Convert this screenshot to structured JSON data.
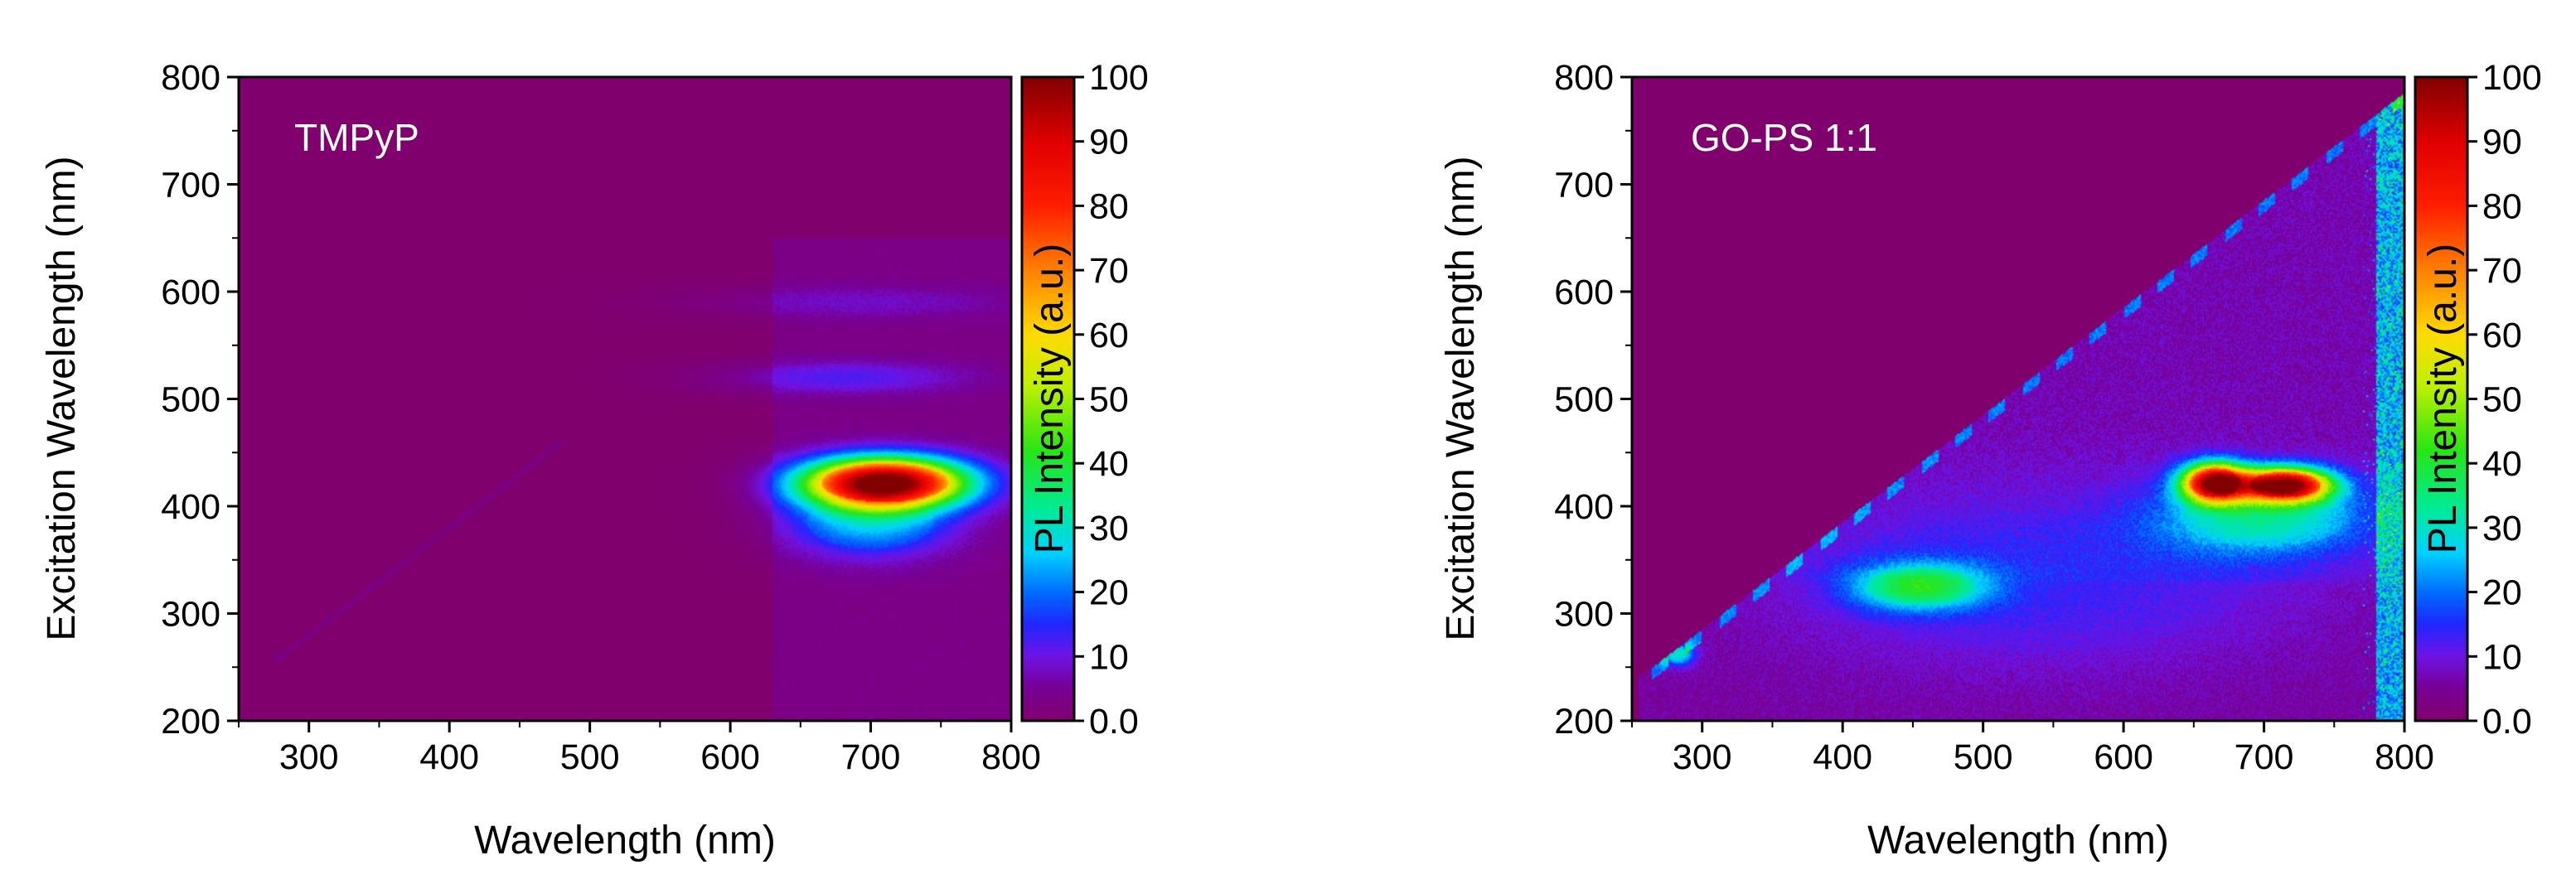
{
  "chart_data": [
    {
      "type": "heatmap",
      "panel_label": "TMPyP",
      "xlabel": "Wavelength (nm)",
      "ylabel": "Excitation Wavelength (nm)",
      "xlim": [
        250,
        800
      ],
      "ylim": [
        200,
        800
      ],
      "xticks": [
        "300",
        "400",
        "500",
        "600",
        "700",
        "800"
      ],
      "xtick_values": [
        300,
        400,
        500,
        600,
        700,
        800
      ],
      "yticks": [
        "200",
        "300",
        "400",
        "500",
        "600",
        "700",
        "800"
      ],
      "ytick_values": [
        200,
        300,
        400,
        500,
        600,
        700,
        800
      ],
      "colorbar": {
        "label": "PL Intensity (a.u.)",
        "range": [
          0,
          100
        ],
        "ticks": [
          "0.0",
          "10",
          "20",
          "30",
          "40",
          "50",
          "60",
          "70",
          "80",
          "90",
          "100"
        ],
        "tick_values": [
          0,
          10,
          20,
          30,
          40,
          50,
          60,
          70,
          80,
          90,
          100
        ]
      },
      "features": [
        {
          "kind": "blob",
          "em": 710,
          "ex": 422,
          "sigma_em": 45,
          "sigma_ex": 18,
          "intensity": 100
        },
        {
          "kind": "blob",
          "em": 700,
          "ex": 385,
          "sigma_em": 45,
          "sigma_ex": 25,
          "intensity": 22
        },
        {
          "kind": "blob",
          "em": 680,
          "ex": 520,
          "sigma_em": 70,
          "sigma_ex": 12,
          "intensity": 9
        },
        {
          "kind": "blob",
          "em": 690,
          "ex": 590,
          "sigma_em": 90,
          "sigma_ex": 12,
          "intensity": 5
        },
        {
          "kind": "band",
          "em_start": 630,
          "em_end": 800,
          "ex_start": 200,
          "ex_end": 650,
          "intensity": 3
        },
        {
          "kind": "diagonal",
          "em_start": 275,
          "em_end": 480,
          "offset": -20,
          "intensity": 4
        }
      ]
    },
    {
      "type": "heatmap",
      "panel_label": "GO-PS 1:1",
      "xlabel": "Wavelength (nm)",
      "ylabel": "Excitation Wavelength (nm)",
      "xlim": [
        250,
        800
      ],
      "ylim": [
        200,
        800
      ],
      "xticks": [
        "300",
        "400",
        "500",
        "600",
        "700",
        "800"
      ],
      "xtick_values": [
        300,
        400,
        500,
        600,
        700,
        800
      ],
      "yticks": [
        "200",
        "300",
        "400",
        "500",
        "600",
        "700",
        "800"
      ],
      "ytick_values": [
        200,
        300,
        400,
        500,
        600,
        700,
        800
      ],
      "colorbar": {
        "label": "PL Intensity (a.u.)",
        "range": [
          0,
          100
        ],
        "ticks": [
          "0.0",
          "10",
          "20",
          "30",
          "40",
          "50",
          "60",
          "70",
          "80",
          "90",
          "100"
        ],
        "tick_values": [
          0,
          10,
          20,
          30,
          40,
          50,
          60,
          70,
          80,
          90,
          100
        ]
      },
      "features": [
        {
          "kind": "blob",
          "em": 665,
          "ex": 422,
          "sigma_em": 18,
          "sigma_ex": 14,
          "intensity": 88
        },
        {
          "kind": "blob",
          "em": 715,
          "ex": 420,
          "sigma_em": 25,
          "sigma_ex": 12,
          "intensity": 90
        },
        {
          "kind": "blob",
          "em": 700,
          "ex": 390,
          "sigma_em": 60,
          "sigma_ex": 28,
          "intensity": 24
        },
        {
          "kind": "blob",
          "em": 455,
          "ex": 325,
          "sigma_em": 38,
          "sigma_ex": 17,
          "intensity": 30
        },
        {
          "kind": "blob",
          "em": 283,
          "ex": 262,
          "sigma_em": 9,
          "sigma_ex": 8,
          "intensity": 25
        },
        {
          "kind": "blob",
          "em": 540,
          "ex": 330,
          "sigma_em": 150,
          "sigma_ex": 65,
          "intensity": 8
        },
        {
          "kind": "band",
          "em_start": 780,
          "em_end": 800,
          "ex_start": 200,
          "ex_end": 800,
          "intensity": 18
        },
        {
          "kind": "triangle",
          "em_start": 255,
          "em_end": 800,
          "offset": -20,
          "intensity": 7
        }
      ]
    }
  ]
}
